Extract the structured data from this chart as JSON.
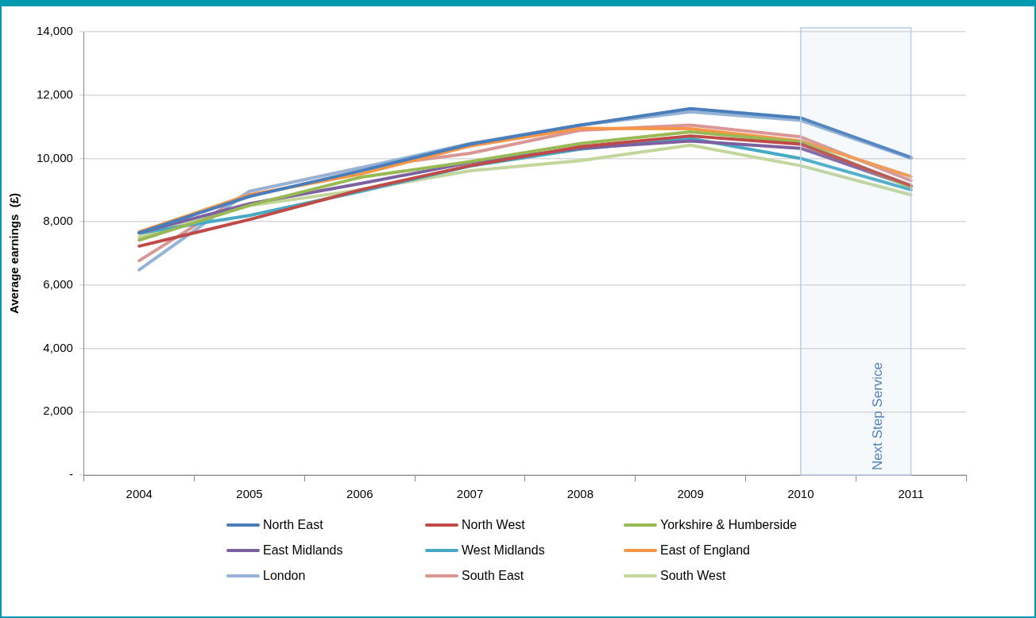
{
  "chart_data": {
    "type": "line",
    "ylabel": "Average earnings  (£)",
    "categories": [
      "2004",
      "2005",
      "2006",
      "2007",
      "2008",
      "2009",
      "2010",
      "2011"
    ],
    "series": [
      {
        "name": "North East",
        "color": "#4a7ebb",
        "values": [
          7650,
          8800,
          9600,
          10450,
          11050,
          11570,
          11280,
          10030
        ]
      },
      {
        "name": "North West",
        "color": "#be4b48",
        "values": [
          7230,
          8070,
          9000,
          9770,
          10370,
          10710,
          10450,
          9140
        ]
      },
      {
        "name": "Yorkshire & Humberside",
        "color": "#98b954",
        "values": [
          7420,
          8520,
          9400,
          9900,
          10470,
          10840,
          10520,
          9090
        ]
      },
      {
        "name": "East Midlands",
        "color": "#7d60a0",
        "values": [
          7650,
          8570,
          9200,
          9870,
          10320,
          10550,
          10320,
          9120
        ]
      },
      {
        "name": "West Midlands",
        "color": "#46aac5",
        "values": [
          7640,
          8200,
          8950,
          9760,
          10290,
          10630,
          10000,
          9010
        ]
      },
      {
        "name": "East of England",
        "color": "#f79646",
        "values": [
          7680,
          8850,
          9500,
          10390,
          10950,
          10940,
          10550,
          9430
        ]
      },
      {
        "name": "London",
        "color": "#95b3d7",
        "values": [
          6480,
          8960,
          9700,
          10470,
          11050,
          11470,
          11200,
          10000
        ]
      },
      {
        "name": "South East",
        "color": "#d99694",
        "values": [
          6770,
          8960,
          9700,
          10160,
          10890,
          11050,
          10680,
          9300
        ]
      },
      {
        "name": "South West",
        "color": "#c3d69b",
        "values": [
          7520,
          8510,
          9000,
          9610,
          9930,
          10420,
          9770,
          8850
        ]
      }
    ],
    "ylim": [
      0,
      14000
    ],
    "yticks": [
      {
        "value": 0,
        "label": "-"
      },
      {
        "value": 2000,
        "label": "2,000"
      },
      {
        "value": 4000,
        "label": "4,000"
      },
      {
        "value": 6000,
        "label": "6,000"
      },
      {
        "value": 8000,
        "label": "8,000"
      },
      {
        "value": 10000,
        "label": "10,000"
      },
      {
        "value": 12000,
        "label": "12,000"
      },
      {
        "value": 14000,
        "label": "14,000"
      }
    ],
    "bands": [
      {
        "axis": "x",
        "from": "2010",
        "to": "2011",
        "label": "Next Step Service",
        "color": "#b9cde5"
      }
    ],
    "grid": "y",
    "legend": "bottom",
    "marker": "none",
    "line_style": "solid"
  }
}
